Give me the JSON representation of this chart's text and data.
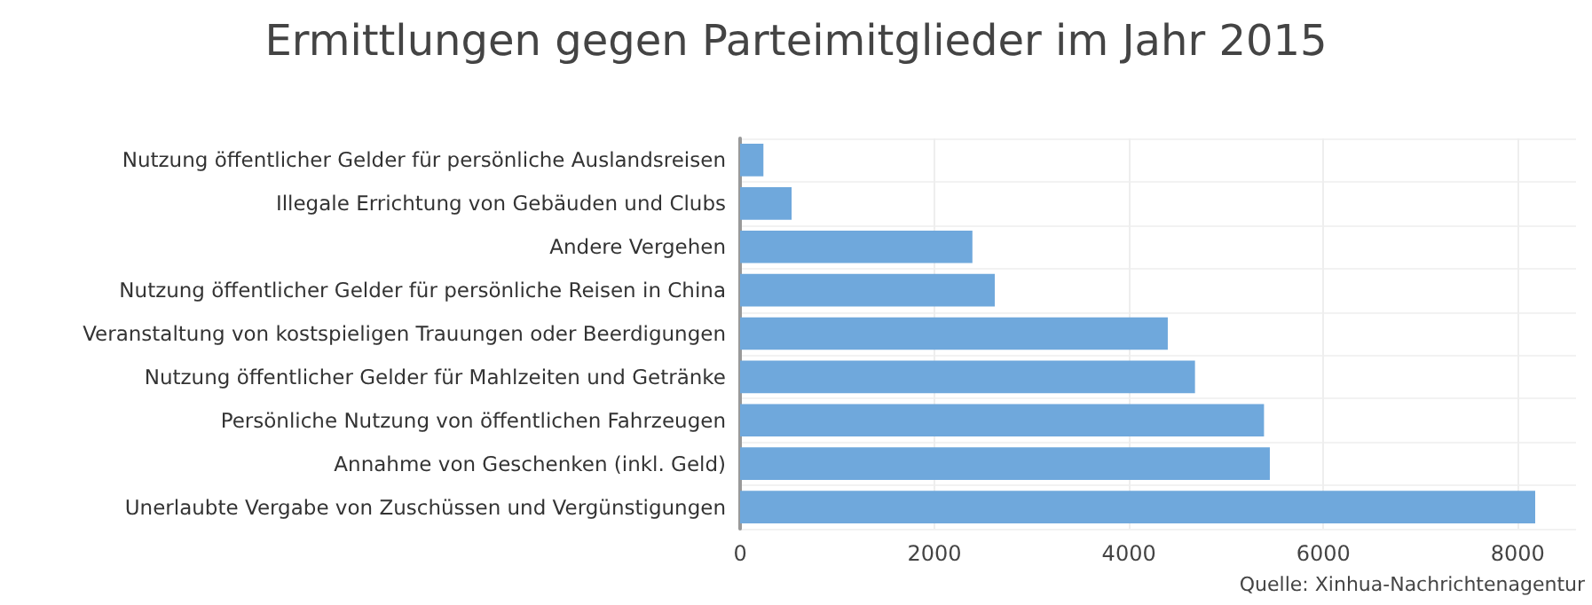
{
  "chart_data": {
    "type": "bar",
    "orientation": "horizontal",
    "title": "Ermittlungen gegen Parteimitglieder im Jahr 2015",
    "categories": [
      "Nutzung öffentlicher Gelder für persönliche Auslandsreisen",
      "Illegale Errichtung von Gebäuden und Clubs",
      "Andere Vergehen",
      "Nutzung öffentlicher Gelder für persönliche Reisen in China",
      "Veranstaltung von kostspieligen Trauungen oder Beerdigungen",
      "Nutzung öffentlicher Gelder für Mahlzeiten und Getränke",
      "Persönliche Nutzung von öffentlichen Fahrzeugen",
      "Annahme von Geschenken (inkl. Geld)",
      "Unerlaubte Vergabe von Zuschüssen und Vergünstigungen"
    ],
    "values": [
      240,
      530,
      2390,
      2620,
      4400,
      4680,
      5390,
      5450,
      8180
    ],
    "color": "#6fa8dc",
    "xlim": [
      0,
      8600
    ],
    "xticks": [
      0,
      2000,
      4000,
      6000,
      8000
    ],
    "grid": true,
    "annotations": [
      "Quelle: Xinhua-Nachrichtenagentur"
    ]
  }
}
